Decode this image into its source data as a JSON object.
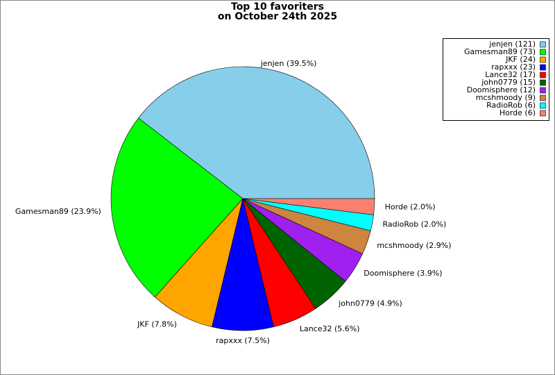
{
  "chart_data": {
    "type": "pie",
    "title": [
      "Top 10 favoriters",
      "on October 24th 2025"
    ],
    "values": [
      121,
      73,
      24,
      23,
      17,
      15,
      12,
      9,
      6,
      6
    ],
    "value_labels": [
      "jenjen (39.5%)",
      "Gamesman89 (23.9%)",
      "JKF (7.8%)",
      "rapxxx (7.5%)",
      "Lance32 (5.6%)",
      "john0779 (4.9%)",
      "Doomisphere (3.9%)",
      "mcshmoody (2.9%)",
      "RadioRob (2.0%)",
      "Horde (2.0%)"
    ],
    "legend": [
      "jenjen (121)",
      "Gamesman89 (73)",
      "JKF (24)",
      "rapxxx (23)",
      "Lance32 (17)",
      "john0779 (15)",
      "Doomisphere (12)",
      "mcshmoody (9)",
      "RadioRob (6)",
      "Horde (6)"
    ],
    "colors": [
      "#87ceeb",
      "#00ff00",
      "#ffa500",
      "#0000ff",
      "#ff0000",
      "#006400",
      "#a020f0",
      "#cd853f",
      "#00ffff",
      "#fa8072"
    ],
    "legend_position": "upper right"
  }
}
